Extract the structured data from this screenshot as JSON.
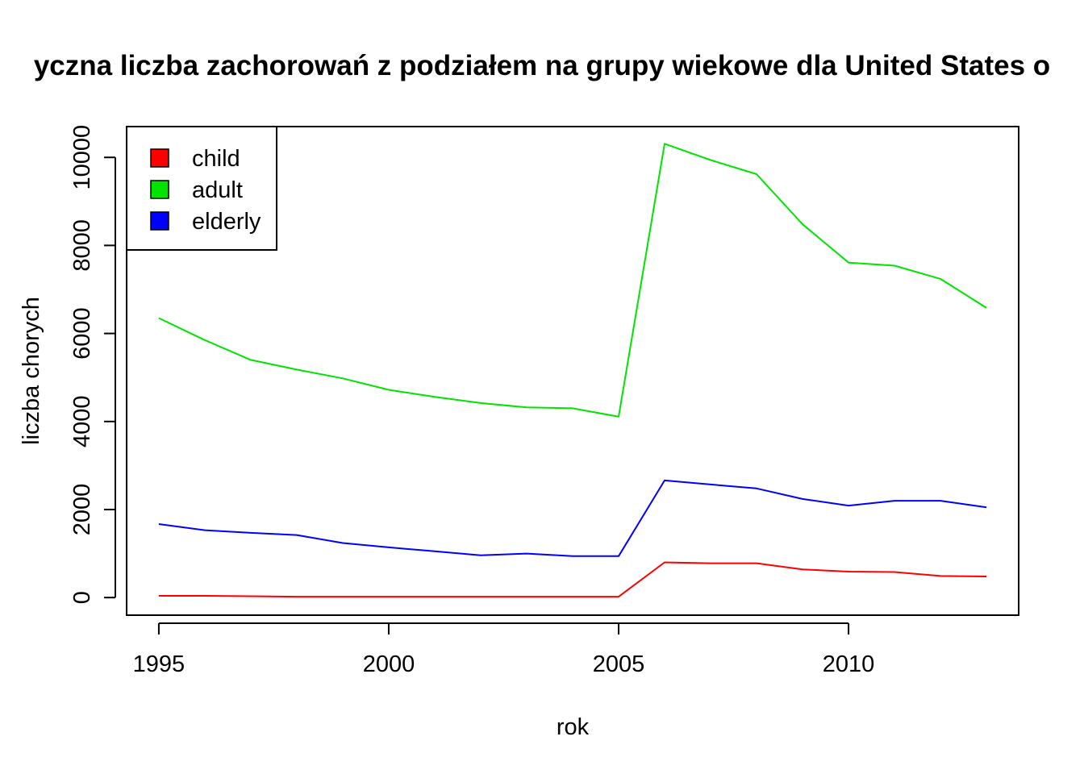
{
  "chart_data": {
    "type": "line",
    "title": "yczna liczba zachorowań z podziałem na grupy wiekowe dla United States o",
    "xlabel": "rok",
    "ylabel": "liczba chorych",
    "xlim": [
      1994.3,
      2013.7
    ],
    "ylim": [
      -400,
      10700
    ],
    "x_ticks": [
      1995,
      2000,
      2005,
      2010
    ],
    "x_tick_labels": [
      "1995",
      "2000",
      "2005",
      "2010"
    ],
    "y_ticks": [
      0,
      2000,
      4000,
      6000,
      8000,
      10000
    ],
    "y_tick_labels": [
      "0",
      "2000",
      "4000",
      "6000",
      "8000",
      "10000"
    ],
    "grid": false,
    "legend_position": "top-left",
    "x": [
      1995,
      1996,
      1997,
      1998,
      1999,
      2000,
      2001,
      2002,
      2003,
      2004,
      2005,
      2006,
      2007,
      2008,
      2009,
      2010,
      2011,
      2012,
      2013
    ],
    "series": [
      {
        "name": "child",
        "color": "#ff0000",
        "values": [
          40,
          40,
          30,
          20,
          20,
          20,
          20,
          20,
          20,
          20,
          20,
          800,
          780,
          780,
          640,
          590,
          580,
          490,
          480
        ]
      },
      {
        "name": "adult",
        "color": "#00e400",
        "values": [
          6350,
          5850,
          5400,
          5180,
          4980,
          4720,
          4560,
          4420,
          4320,
          4300,
          4110,
          10310,
          9940,
          9620,
          8480,
          7610,
          7540,
          7240,
          6580
        ]
      },
      {
        "name": "elderly",
        "color": "#0000ff",
        "values": [
          1670,
          1530,
          1470,
          1420,
          1240,
          1140,
          1050,
          960,
          1000,
          940,
          940,
          2660,
          2570,
          2480,
          2240,
          2090,
          2200,
          2200,
          2050
        ]
      }
    ]
  }
}
